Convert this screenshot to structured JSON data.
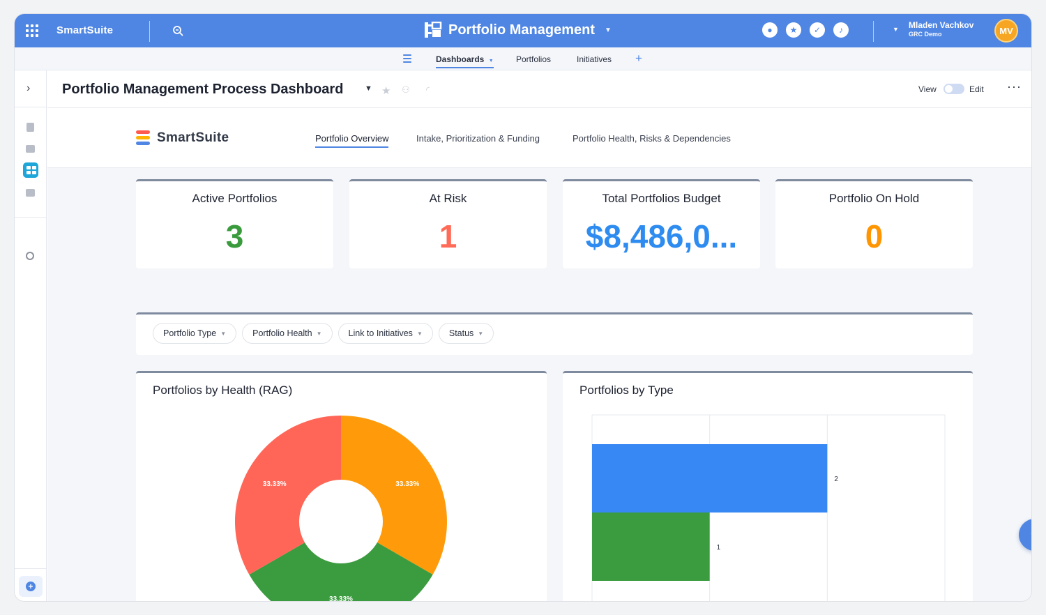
{
  "topbar": {
    "brand": "SmartSuite",
    "app_title": "Portfolio Management",
    "user_name": "Mladen Vachkov",
    "user_org": "GRC Demo",
    "avatar_initials": "MV",
    "accent_color": "#4f86e3"
  },
  "subnav": {
    "tabs": [
      {
        "label": "Dashboards",
        "active": true
      },
      {
        "label": "Portfolios"
      },
      {
        "label": "Initiatives"
      }
    ]
  },
  "header": {
    "title": "Portfolio Management Process Dashboard",
    "view_label": "View",
    "edit_label": "Edit"
  },
  "dashboard": {
    "logo_text": "SmartSuite",
    "tabs": [
      {
        "label": "Portfolio Overview",
        "active": true
      },
      {
        "label": "Intake, Prioritization & Funding"
      },
      {
        "label": "Portfolio Health, Risks & Dependencies"
      }
    ]
  },
  "stats": [
    {
      "label": "Active Portfolios",
      "value": "3",
      "color": "#3a9b3d"
    },
    {
      "label": "At Risk",
      "value": "1",
      "color": "#ff6b57"
    },
    {
      "label": "Total Portfolios Budget",
      "value": "$8,486,0...",
      "color": "#2e8cf0"
    },
    {
      "label": "Portfolio On Hold",
      "value": "0",
      "color": "#ff9500"
    }
  ],
  "filters": [
    {
      "label": "Portfolio Type"
    },
    {
      "label": "Portfolio Health"
    },
    {
      "label": "Link to Initiatives"
    },
    {
      "label": "Status"
    }
  ],
  "charts": {
    "health_title": "Portfolios by Health (RAG)",
    "type_title": "Portfolios by Type"
  },
  "chart_data": [
    {
      "type": "pie",
      "title": "Portfolios by Health (RAG)",
      "slices": [
        {
          "value": 1,
          "label": "33.33%",
          "color": "#ff9b0a"
        },
        {
          "value": 1,
          "label": "33.33%",
          "color": "#3b9b3f"
        },
        {
          "value": 1,
          "label": "33.33%",
          "color": "#ff6657"
        }
      ],
      "donut": true
    },
    {
      "type": "bar",
      "orientation": "horizontal",
      "title": "Portfolios by Type",
      "values": [
        2,
        1
      ],
      "colors": [
        "#3787f5",
        "#3b9b3f"
      ],
      "xlim": [
        0,
        3
      ]
    }
  ]
}
